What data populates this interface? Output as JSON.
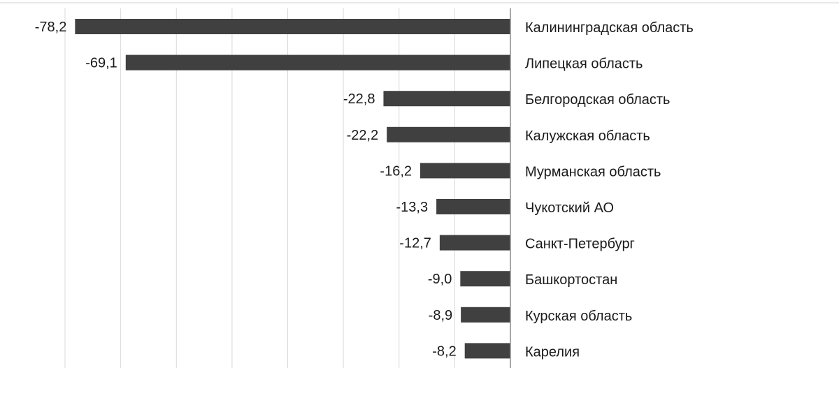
{
  "chart_data": {
    "type": "bar",
    "orientation": "horizontal",
    "categories": [
      "Калининградская область",
      "Липецкая область",
      "Белгородская область",
      "Калужская область",
      "Мурманская область",
      "Чукотский АО",
      "Санкт-Петербург",
      "Башкортостан",
      "Курская область",
      "Карелия"
    ],
    "values": [
      -78.2,
      -69.1,
      -22.8,
      -22.2,
      -16.2,
      -13.3,
      -12.7,
      -9.0,
      -8.9,
      -8.2
    ],
    "value_labels": [
      "-78,2",
      "-69,1",
      "-22,8",
      "-22,2",
      "-16,2",
      "-13,3",
      "-12,7",
      "-9,0",
      "-8,9",
      "-8,2"
    ],
    "xlim": [
      -80,
      0
    ],
    "grid": true,
    "bar_color": "#404040",
    "grid_color": "#d9d9d9",
    "axis_color": "#8c8c8c",
    "title": "",
    "xlabel": "",
    "ylabel": ""
  }
}
